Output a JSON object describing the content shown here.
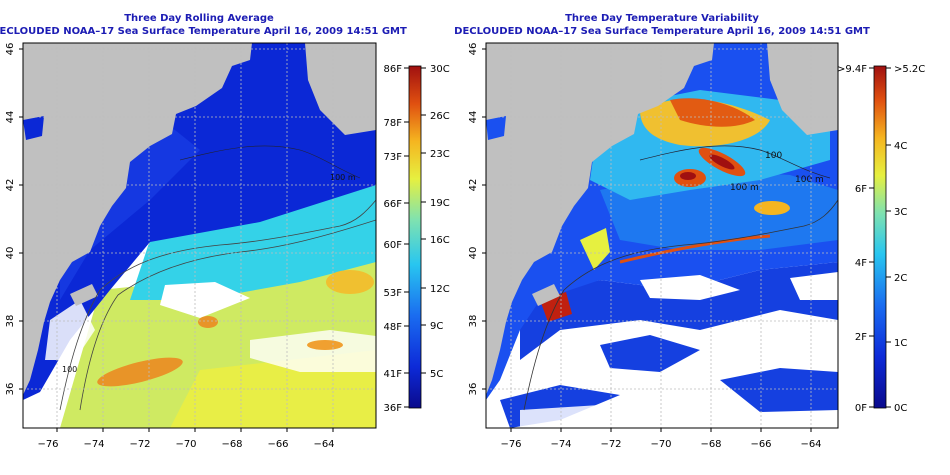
{
  "panels": [
    {
      "id": "avg",
      "title_line1": "Three Day Rolling Average",
      "title_line2": "DECLOUDED NOAA–17 Sea Surface Temperature April 16, 2009 14:51 GMT",
      "colorbar_f_labels": [
        "86F",
        "78F",
        "73F",
        "66F",
        "60F",
        "53F",
        "48F",
        "41F",
        "36F"
      ],
      "colorbar_c_labels": [
        "30C",
        "26C",
        "23C",
        "19C",
        "16C",
        "12C",
        "9C",
        "5C"
      ]
    },
    {
      "id": "var",
      "title_line1": "Three Day Temperature Variability",
      "title_line2": "DECLOUDED NOAA–17 Sea Surface Temperature April 16, 2009 14:51 GMT",
      "colorbar_f_labels": [
        ">9.4F",
        "6F",
        "4F",
        "2F",
        "0F"
      ],
      "colorbar_c_labels": [
        ">5.2C",
        "4C",
        "3C",
        "2C",
        "1C",
        "0C"
      ]
    }
  ],
  "map": {
    "lon_ticks": [
      "−76",
      "−74",
      "−72",
      "−70",
      "−68",
      "−66",
      "−64"
    ],
    "lat_ticks": [
      "46",
      "44",
      "42",
      "40",
      "38",
      "36"
    ]
  },
  "isobath_labels": [
    "100",
    "100 m",
    "100 m",
    "100 m"
  ],
  "colors": {
    "title": "#1c1cb4",
    "land": "#c0c0c0",
    "sst_scale": [
      "#0a0a8c",
      "#0d2ad8",
      "#1a6cf0",
      "#28c6f0",
      "#7fe2b0",
      "#e6f040",
      "#f5b520",
      "#e05010",
      "#a01010"
    ],
    "variability_scale": [
      "#0a0a8c",
      "#0d2ad8",
      "#1a6cf0",
      "#28c6f0",
      "#7fe2b0",
      "#e6f040",
      "#f5b520",
      "#e05010",
      "#a01010"
    ]
  }
}
